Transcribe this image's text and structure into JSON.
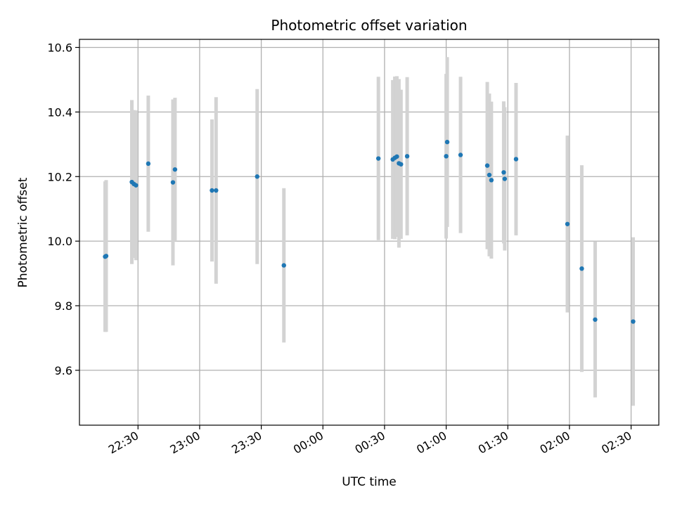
{
  "chart_data": {
    "type": "scatter",
    "title": "Photometric offset variation",
    "xlabel": "UTC time",
    "ylabel": "Photometric offset",
    "xlim": [
      "22:01:30",
      "02:43:30"
    ],
    "ylim": [
      9.43,
      10.625
    ],
    "grid": true,
    "x_ticks": [
      "22:30",
      "23:00",
      "23:30",
      "00:00",
      "00:30",
      "01:00",
      "01:30",
      "02:00",
      "02:30"
    ],
    "y_ticks": [
      "9.6",
      "9.8",
      "10.0",
      "10.2",
      "10.4",
      "10.6"
    ],
    "colors": {
      "points": "#1f77b4",
      "errorbars": "#d3d3d3",
      "grid": "#b0b0b0"
    },
    "points": [
      {
        "x": "22:14:00",
        "y": 9.952,
        "err": 0.233
      },
      {
        "x": "22:14:30",
        "y": 9.954,
        "err": 0.235
      },
      {
        "x": "22:27:00",
        "y": 10.183,
        "err": 0.254
      },
      {
        "x": "22:28:00",
        "y": 10.177,
        "err": 0.229
      },
      {
        "x": "22:29:00",
        "y": 10.173,
        "err": 0.232
      },
      {
        "x": "22:35:00",
        "y": 10.24,
        "err": 0.211
      },
      {
        "x": "22:47:00",
        "y": 10.182,
        "err": 0.257
      },
      {
        "x": "22:48:00",
        "y": 10.222,
        "err": 0.222
      },
      {
        "x": "23:06:00",
        "y": 10.157,
        "err": 0.22
      },
      {
        "x": "23:08:00",
        "y": 10.157,
        "err": 0.289
      },
      {
        "x": "23:28:00",
        "y": 10.2,
        "err": 0.271
      },
      {
        "x": "23:41:00",
        "y": 9.925,
        "err": 0.239
      },
      {
        "x": "00:27:00",
        "y": 10.256,
        "err": 0.253
      },
      {
        "x": "00:34:00",
        "y": 10.253,
        "err": 0.246
      },
      {
        "x": "00:35:00",
        "y": 10.258,
        "err": 0.252
      },
      {
        "x": "00:36:00",
        "y": 10.262,
        "err": 0.249
      },
      {
        "x": "00:37:00",
        "y": 10.241,
        "err": 0.261
      },
      {
        "x": "00:38:00",
        "y": 10.238,
        "err": 0.231
      },
      {
        "x": "00:41:00",
        "y": 10.263,
        "err": 0.245
      },
      {
        "x": "01:00:00",
        "y": 10.263,
        "err": 0.255
      },
      {
        "x": "01:00:30",
        "y": 10.307,
        "err": 0.263
      },
      {
        "x": "01:07:00",
        "y": 10.267,
        "err": 0.242
      },
      {
        "x": "01:20:00",
        "y": 10.234,
        "err": 0.259
      },
      {
        "x": "01:21:00",
        "y": 10.205,
        "err": 0.252
      },
      {
        "x": "01:22:00",
        "y": 10.189,
        "err": 0.243
      },
      {
        "x": "01:28:00",
        "y": 10.213,
        "err": 0.22
      },
      {
        "x": "01:28:30",
        "y": 10.193,
        "err": 0.222
      },
      {
        "x": "01:34:00",
        "y": 10.254,
        "err": 0.236
      },
      {
        "x": "01:59:00",
        "y": 10.053,
        "err": 0.274
      },
      {
        "x": "02:06:00",
        "y": 9.915,
        "err": 0.32
      },
      {
        "x": "02:12:30",
        "y": 9.757,
        "err": 0.241
      },
      {
        "x": "02:31:00",
        "y": 9.751,
        "err": 0.261
      }
    ]
  }
}
